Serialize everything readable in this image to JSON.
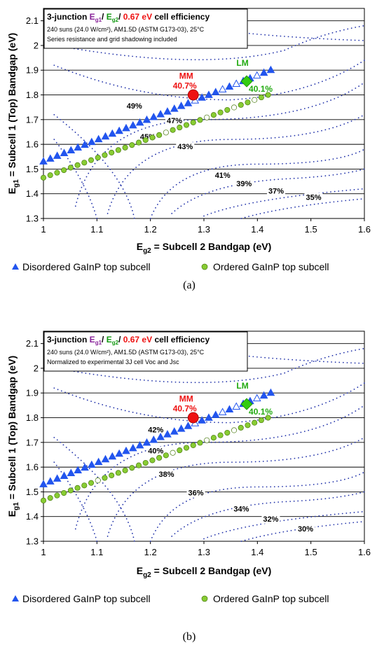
{
  "chart_data": [
    {
      "type": "scatter",
      "caption": "(a)",
      "title_parts": {
        "prefix": "3-junction ",
        "e1": "E",
        "e1sub": "g1",
        "sep1": "/ ",
        "e2": "E",
        "e2sub": "g2",
        "sep2": "/ ",
        "ev": "0.67 eV",
        "suffix": " cell efficiency"
      },
      "box_lines": [
        "240 suns (24.0 W/cm²), AM1.5D (ASTM G173-03), 25°C",
        "Series resistance and grid shadowing included"
      ],
      "xlabel_parts": {
        "e": "E",
        "sub": "g2",
        "rest": " = Subcell 2 Bandgap  (eV)"
      },
      "ylabel_parts": {
        "e": "E",
        "sub": "g1",
        "rest": " = Subcell 1 (Top) Bandgap  (eV)"
      },
      "xlim": [
        1.0,
        1.6
      ],
      "ylim": [
        1.3,
        2.15
      ],
      "xticks": [
        "1",
        "1.1",
        "1.2",
        "1.3",
        "1.4",
        "1.5",
        "1.6"
      ],
      "yticks": [
        "1.3",
        "1.4",
        "1.5",
        "1.6",
        "1.7",
        "1.8",
        "1.9",
        "2",
        "2.1"
      ],
      "grid": "horizontal",
      "legend_position": "bottom",
      "series": [
        {
          "name": "Disordered GaInP top subcell",
          "marker": "triangle",
          "color": "#2255ee",
          "x": [
            1.0,
            1.425
          ],
          "y": [
            1.53,
            1.9
          ],
          "open_x": [
            1.28,
            1.33,
            1.36,
            1.4
          ],
          "n": 34
        },
        {
          "name": "Ordered GaInP top subcell",
          "marker": "circle",
          "color": "#88cc33",
          "x": [
            1.0,
            1.42
          ],
          "y": [
            1.465,
            1.8
          ],
          "open_x": [
            1.23,
            1.3,
            1.355,
            1.4
          ],
          "n": 34
        }
      ],
      "points": [
        {
          "label": "MM",
          "value": "40.7%",
          "x": 1.28,
          "y": 1.8,
          "color": "#ee1111",
          "marker": "circle"
        },
        {
          "label": "LM",
          "value": "40.1%",
          "x": 1.38,
          "y": 1.855,
          "color": "#33cc11",
          "marker": "diamond"
        }
      ],
      "contour_labels": [
        {
          "text": "49%",
          "x": 1.17,
          "y": 1.745
        },
        {
          "text": "47%",
          "x": 1.245,
          "y": 1.685
        },
        {
          "text": "45%",
          "x": 1.195,
          "y": 1.62
        },
        {
          "text": "43%",
          "x": 1.265,
          "y": 1.58
        },
        {
          "text": "41%",
          "x": 1.335,
          "y": 1.465
        },
        {
          "text": "39%",
          "x": 1.375,
          "y": 1.43
        },
        {
          "text": "37%",
          "x": 1.435,
          "y": 1.4
        },
        {
          "text": "35%",
          "x": 1.505,
          "y": 1.375
        }
      ]
    },
    {
      "type": "scatter",
      "caption": "(b)",
      "title_parts": {
        "prefix": "3-junction ",
        "e1": "E",
        "e1sub": "g1",
        "sep1": "/ ",
        "e2": "E",
        "e2sub": "g2",
        "sep2": "/ ",
        "ev": "0.67 eV",
        "suffix": " cell efficiency"
      },
      "box_lines": [
        "240 suns (24.0 W/cm²), AM1.5D (ASTM G173-03), 25°C",
        "Normalized to experimental 3J cell Voc and Jsc"
      ],
      "xlabel_parts": {
        "e": "E",
        "sub": "g2",
        "rest": " = Subcell 2 Bandgap  (eV)"
      },
      "ylabel_parts": {
        "e": "E",
        "sub": "g1",
        "rest": " = Subcell 1 (Top) Bandgap  (eV)"
      },
      "xlim": [
        1.0,
        1.6
      ],
      "ylim": [
        1.3,
        2.15
      ],
      "xticks": [
        "1",
        "1.1",
        "1.2",
        "1.3",
        "1.4",
        "1.5",
        "1.6"
      ],
      "yticks": [
        "1.3",
        "1.4",
        "1.5",
        "1.6",
        "1.7",
        "1.8",
        "1.9",
        "2",
        "2.1"
      ],
      "grid": "horizontal",
      "legend_position": "bottom",
      "series": [
        {
          "name": "Disordered GaInP top subcell",
          "marker": "triangle",
          "color": "#2255ee",
          "x": [
            1.0,
            1.425
          ],
          "y": [
            1.53,
            1.9
          ],
          "open_x": [
            1.28,
            1.33,
            1.36,
            1.4
          ],
          "n": 34
        },
        {
          "name": "Ordered GaInP top subcell",
          "marker": "circle",
          "color": "#88cc33",
          "x": [
            1.0,
            1.42
          ],
          "y": [
            1.465,
            1.8
          ],
          "open_x": [
            1.1,
            1.24,
            1.3,
            1.355
          ],
          "n": 34
        }
      ],
      "points": [
        {
          "label": "MM",
          "value": "40.7%",
          "x": 1.28,
          "y": 1.8,
          "color": "#ee1111",
          "marker": "circle"
        },
        {
          "label": "LM",
          "value": "40.1%",
          "x": 1.38,
          "y": 1.855,
          "color": "#33cc11",
          "marker": "diamond"
        }
      ],
      "contour_labels": [
        {
          "text": "42%",
          "x": 1.21,
          "y": 1.74
        },
        {
          "text": "40%",
          "x": 1.21,
          "y": 1.655
        },
        {
          "text": "38%",
          "x": 1.23,
          "y": 1.56
        },
        {
          "text": "36%",
          "x": 1.285,
          "y": 1.485
        },
        {
          "text": "34%",
          "x": 1.37,
          "y": 1.42
        },
        {
          "text": "32%",
          "x": 1.425,
          "y": 1.38
        },
        {
          "text": "30%",
          "x": 1.49,
          "y": 1.34
        }
      ]
    }
  ]
}
